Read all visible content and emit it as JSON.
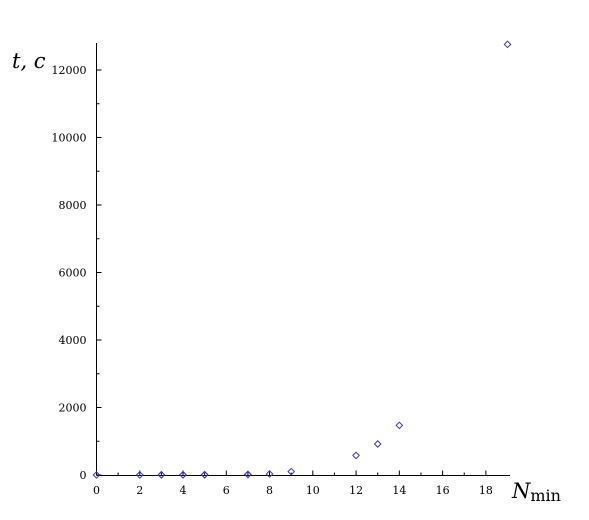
{
  "chart_data": {
    "type": "scatter",
    "xlabel": "N",
    "xlabel_sub": "min",
    "ylabel": "t, c",
    "xlim": [
      0,
      19
    ],
    "ylim": [
      0,
      12800
    ],
    "x_ticks": [
      0,
      2,
      4,
      6,
      8,
      10,
      12,
      14,
      16,
      18
    ],
    "y_ticks": [
      0,
      2000,
      4000,
      6000,
      8000,
      10000,
      12000
    ],
    "grid": false,
    "marker": "diamond-open",
    "marker_color": "#3a3ab0",
    "axis_color": "#000000",
    "points": [
      {
        "x": 0,
        "y": 1
      },
      {
        "x": 2,
        "y": 2
      },
      {
        "x": 3,
        "y": 3
      },
      {
        "x": 3,
        "y": 5
      },
      {
        "x": 4,
        "y": 4
      },
      {
        "x": 4,
        "y": 8
      },
      {
        "x": 5,
        "y": 6
      },
      {
        "x": 5,
        "y": 10
      },
      {
        "x": 7,
        "y": 12
      },
      {
        "x": 7,
        "y": 18
      },
      {
        "x": 8,
        "y": 30
      },
      {
        "x": 9,
        "y": 100
      },
      {
        "x": 12,
        "y": 580
      },
      {
        "x": 13,
        "y": 920
      },
      {
        "x": 14,
        "y": 1470
      },
      {
        "x": 19,
        "y": 12760
      }
    ]
  }
}
